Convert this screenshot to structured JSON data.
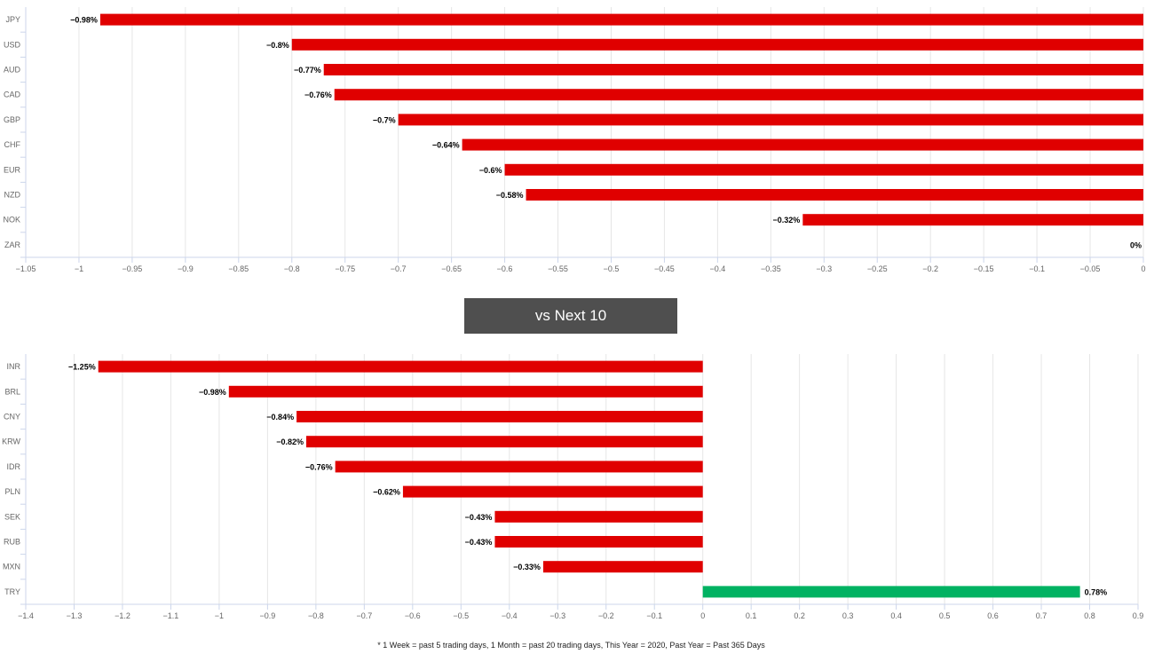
{
  "colors": {
    "negative": "#e00000",
    "positive": "#00b262",
    "grid": "#e6e6e6",
    "axis": "#ccd6eb",
    "tick_text": "#666666",
    "button_bg": "#4f4f4f"
  },
  "section_button": {
    "label": "vs Next 10"
  },
  "footnote": "* 1 Week = past 5 trading days, 1 Month = past 20 trading days, This Year = 2020, Past Year = Past 365 Days",
  "chart_data": [
    {
      "type": "bar",
      "orientation": "horizontal",
      "categories": [
        "JPY",
        "USD",
        "AUD",
        "CAD",
        "GBP",
        "CHF",
        "EUR",
        "NZD",
        "NOK",
        "ZAR"
      ],
      "values": [
        -0.98,
        -0.8,
        -0.77,
        -0.76,
        -0.7,
        -0.64,
        -0.6,
        -0.58,
        -0.32,
        0
      ],
      "data_labels": [
        "−0.98%",
        "−0.8%",
        "−0.77%",
        "−0.76%",
        "−0.7%",
        "−0.64%",
        "−0.6%",
        "−0.58%",
        "−0.32%",
        "0%"
      ],
      "xlim": [
        -1.05,
        0
      ],
      "ticks": [
        -1.05,
        -1,
        -0.95,
        -0.9,
        -0.85,
        -0.8,
        -0.75,
        -0.7,
        -0.65,
        -0.6,
        -0.55,
        -0.5,
        -0.45,
        -0.4,
        -0.35,
        -0.3,
        -0.25,
        -0.2,
        -0.15,
        -0.1,
        -0.05,
        0
      ],
      "tick_labels": [
        "−1.05",
        "−1",
        "−0.95",
        "−0.9",
        "−0.85",
        "−0.8",
        "−0.75",
        "−0.7",
        "−0.65",
        "−0.6",
        "−0.55",
        "−0.5",
        "−0.45",
        "−0.4",
        "−0.35",
        "−0.3",
        "−0.25",
        "−0.2",
        "−0.15",
        "−0.1",
        "−0.05",
        "0"
      ],
      "grid": true,
      "title": "",
      "xlabel": "",
      "ylabel": ""
    },
    {
      "type": "bar",
      "orientation": "horizontal",
      "categories": [
        "INR",
        "BRL",
        "CNY",
        "KRW",
        "IDR",
        "PLN",
        "SEK",
        "RUB",
        "MXN",
        "TRY"
      ],
      "values": [
        -1.25,
        -0.98,
        -0.84,
        -0.82,
        -0.76,
        -0.62,
        -0.43,
        -0.43,
        -0.33,
        0.78
      ],
      "data_labels": [
        "−1.25%",
        "−0.98%",
        "−0.84%",
        "−0.82%",
        "−0.76%",
        "−0.62%",
        "−0.43%",
        "−0.43%",
        "−0.33%",
        "0.78%"
      ],
      "xlim": [
        -1.4,
        0.9
      ],
      "ticks": [
        -1.4,
        -1.3,
        -1.2,
        -1.1,
        -1,
        -0.9,
        -0.8,
        -0.7,
        -0.6,
        -0.5,
        -0.4,
        -0.3,
        -0.2,
        -0.1,
        0,
        0.1,
        0.2,
        0.3,
        0.4,
        0.5,
        0.6,
        0.7,
        0.8,
        0.9
      ],
      "tick_labels": [
        "−1.4",
        "−1.3",
        "−1.2",
        "−1.1",
        "−1",
        "−0.9",
        "−0.8",
        "−0.7",
        "−0.6",
        "−0.5",
        "−0.4",
        "−0.3",
        "−0.2",
        "−0.1",
        "0",
        "0.1",
        "0.2",
        "0.3",
        "0.4",
        "0.5",
        "0.6",
        "0.7",
        "0.8",
        "0.9"
      ],
      "grid": true,
      "title": "",
      "xlabel": "",
      "ylabel": ""
    }
  ]
}
